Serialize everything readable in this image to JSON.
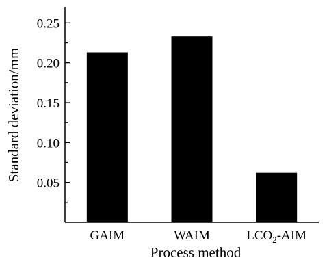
{
  "chart_data": {
    "type": "bar",
    "categories": [
      "GAIM",
      "WAIM",
      "LCO2-AIM"
    ],
    "category_labels": [
      {
        "main": "GAIM",
        "sub": "",
        "tail": ""
      },
      {
        "main": "WAIM",
        "sub": "",
        "tail": ""
      },
      {
        "main": "LCO",
        "sub": "2",
        "tail": "-AIM"
      }
    ],
    "values": [
      0.213,
      0.233,
      0.062
    ],
    "title": "",
    "xlabel": "Process method",
    "ylabel": "Standard deviation/mm",
    "ylim": [
      0.0,
      0.27
    ],
    "yticks": [
      0.05,
      0.1,
      0.15,
      0.2,
      0.25
    ],
    "ytick_labels": [
      "0.05",
      "0.10",
      "0.15",
      "0.20",
      "0.25"
    ],
    "grid": false,
    "bar_color": "#000000"
  }
}
